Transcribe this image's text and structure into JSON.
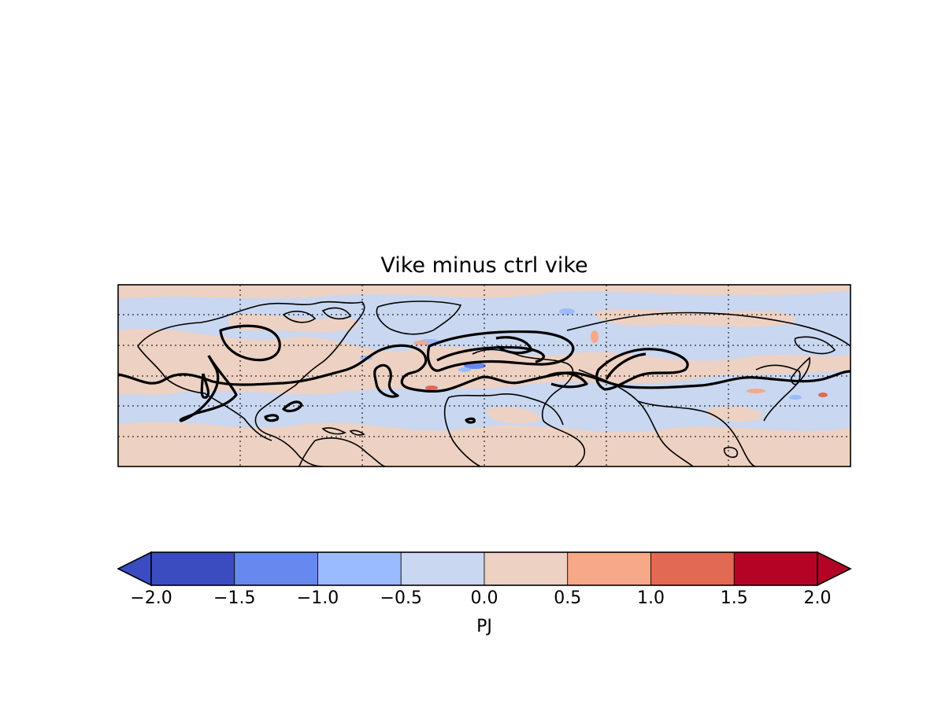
{
  "title": "Vike minus ctrl vike",
  "colorbar": {
    "label": "PJ",
    "bounds": [
      -2.0,
      -1.5,
      -1.0,
      -0.5,
      0.0,
      0.5,
      1.0,
      1.5,
      2.0
    ],
    "tick_labels": [
      "−2.0",
      "−1.5",
      "−1.0",
      "−0.5",
      "0.0",
      "0.5",
      "1.0",
      "1.5",
      "2.0"
    ],
    "colors": [
      "#3b4cc0",
      "#6788ee",
      "#9abbff",
      "#c9d7f0",
      "#edd1c2",
      "#f7a889",
      "#e26952",
      "#b40426"
    ],
    "under_color": "#3b4cc0",
    "over_color": "#b40426",
    "extend": "both"
  },
  "map": {
    "projection": "cylindrical",
    "background_color": "#c9d7f0",
    "positive_color": "#edd1c2",
    "gridlines": "dotted"
  }
}
